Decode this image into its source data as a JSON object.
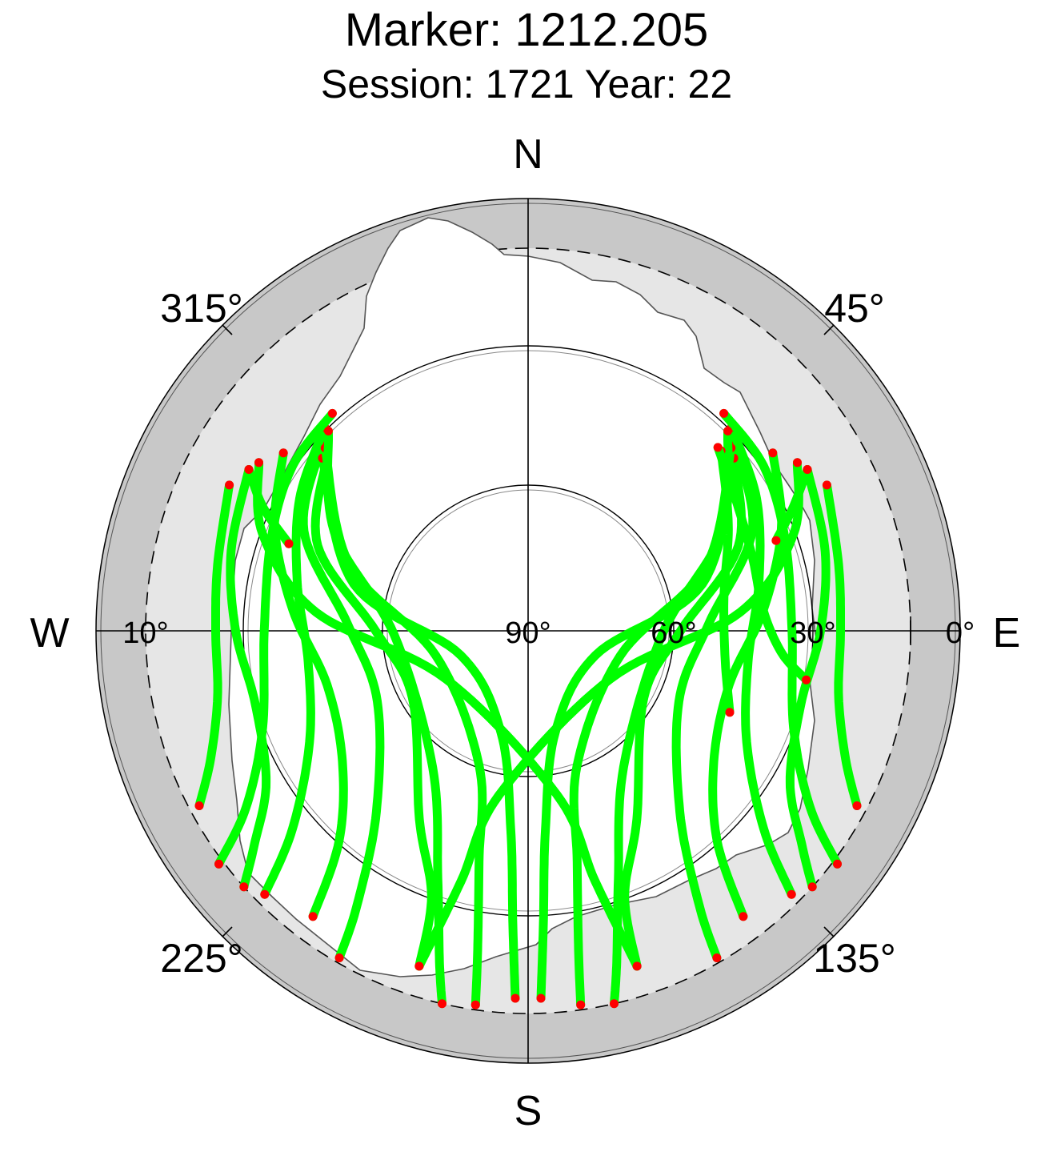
{
  "title": "Marker: 1212.205",
  "subtitle": "Session: 1721 Year: 22",
  "compass": {
    "north": "N",
    "east": "E",
    "south": "S",
    "west": "W"
  },
  "azimuth_labels": [
    "45°",
    "135°",
    "225°",
    "315°"
  ],
  "elevation_labels": [
    "0°",
    "10°",
    "30°",
    "60°",
    "90°"
  ],
  "colors": {
    "track": "#00ff00",
    "track_end": "#ff0000",
    "mask_outer": "#c8c8c8",
    "mask_inner": "#e6e6e6",
    "visible": "#ffffff"
  },
  "chart_data": {
    "type": "scatter",
    "projection": "polar-skyplot",
    "title": "Marker: 1212.205",
    "subtitle": "Session: 1721 Year: 22",
    "elevation_range_deg": [
      0,
      90
    ],
    "elevation_circles_deg": [
      0,
      10,
      30,
      60
    ],
    "azimuth_ticks_deg": [
      0,
      45,
      90,
      135,
      180,
      225,
      270,
      315
    ],
    "grid": true,
    "series": [
      {
        "role": "satellite tracks",
        "marker": "dot",
        "tracks": [
          [
            [
              310,
              34
            ],
            [
              292,
              42
            ],
            [
              270,
              58
            ],
            [
              240,
              62
            ],
            [
              210,
              44
            ],
            [
              200,
              30
            ],
            [
              198,
              16
            ]
          ],
          [
            [
              312,
              31
            ],
            [
              294,
              38
            ],
            [
              272,
              52
            ],
            [
              245,
              55
            ],
            [
              220,
              40
            ],
            [
              212,
              22
            ],
            [
              210,
              11
            ]
          ],
          [
            [
              315,
              29
            ],
            [
              300,
              34
            ],
            [
              282,
              40
            ],
            [
              262,
              43
            ],
            [
              243,
              38
            ],
            [
              230,
              25
            ],
            [
              225,
              12
            ]
          ],
          [
            [
              318,
              28
            ],
            [
              305,
              29
            ],
            [
              290,
              32
            ],
            [
              270,
              34
            ],
            [
              250,
              30
            ],
            [
              238,
              20
            ],
            [
              233,
              9
            ]
          ],
          [
            [
              310,
              33
            ],
            [
              285,
              52
            ],
            [
              250,
              75
            ],
            [
              195,
              68
            ],
            [
              185,
              48
            ],
            [
              183,
              28
            ],
            [
              182,
              13
            ]
          ],
          [
            [
              312,
              32
            ],
            [
              290,
              50
            ],
            [
              255,
              70
            ],
            [
              200,
              60
            ],
            [
              192,
              40
            ],
            [
              189,
              22
            ],
            [
              188,
              11
            ]
          ],
          [
            [
              315,
              30
            ],
            [
              297,
              44
            ],
            [
              268,
              62
            ],
            [
              215,
              55
            ],
            [
              200,
              34
            ],
            [
              195,
              18
            ],
            [
              193,
              10
            ]
          ],
          [
            [
              306,
              26
            ],
            [
              292,
              32
            ],
            [
              275,
              40
            ],
            [
              255,
              46
            ],
            [
              235,
              42
            ],
            [
              222,
              30
            ],
            [
              217,
              15
            ]
          ],
          [
            [
              300,
              22
            ],
            [
              285,
              25
            ],
            [
              270,
              28
            ],
            [
              255,
              30
            ],
            [
              240,
              26
            ],
            [
              232,
              17
            ],
            [
              228,
              10
            ]
          ],
          [
            [
              296,
              20
            ],
            [
              282,
              23
            ],
            [
              270,
              24
            ],
            [
              258,
              23
            ],
            [
              248,
              18
            ],
            [
              242,
              12
            ]
          ],
          [
            [
              302,
              23
            ],
            [
              290,
              30
            ],
            [
              275,
              45
            ],
            [
              240,
              70
            ],
            [
              170,
              55
            ],
            [
              165,
              35
            ],
            [
              162,
              16
            ]
          ],
          [
            [
              50,
              33
            ],
            [
              68,
              42
            ],
            [
              90,
              58
            ],
            [
              120,
              62
            ],
            [
              150,
              44
            ],
            [
              160,
              30
            ],
            [
              162,
              16
            ]
          ],
          [
            [
              48,
              31
            ],
            [
              66,
              38
            ],
            [
              88,
              52
            ],
            [
              115,
              55
            ],
            [
              140,
              40
            ],
            [
              148,
              22
            ],
            [
              150,
              11
            ]
          ],
          [
            [
              45,
              29
            ],
            [
              60,
              34
            ],
            [
              78,
              40
            ],
            [
              98,
              43
            ],
            [
              117,
              38
            ],
            [
              130,
              25
            ],
            [
              135,
              12
            ]
          ],
          [
            [
              42,
              28
            ],
            [
              55,
              29
            ],
            [
              70,
              32
            ],
            [
              90,
              34
            ],
            [
              110,
              30
            ],
            [
              122,
              20
            ],
            [
              127,
              9
            ]
          ],
          [
            [
              50,
              33
            ],
            [
              75,
              52
            ],
            [
              110,
              75
            ],
            [
              165,
              68
            ],
            [
              175,
              48
            ],
            [
              177,
              28
            ],
            [
              178,
              13
            ]
          ],
          [
            [
              48,
              32
            ],
            [
              70,
              50
            ],
            [
              105,
              70
            ],
            [
              160,
              60
            ],
            [
              168,
              40
            ],
            [
              171,
              22
            ],
            [
              172,
              11
            ]
          ],
          [
            [
              45,
              30
            ],
            [
              63,
              44
            ],
            [
              92,
              62
            ],
            [
              145,
              55
            ],
            [
              160,
              34
            ],
            [
              165,
              18
            ],
            [
              167,
              10
            ]
          ],
          [
            [
              54,
              26
            ],
            [
              68,
              32
            ],
            [
              85,
              40
            ],
            [
              105,
              46
            ],
            [
              125,
              42
            ],
            [
              138,
              30
            ],
            [
              143,
              15
            ]
          ],
          [
            [
              60,
              22
            ],
            [
              75,
              25
            ],
            [
              90,
              28
            ],
            [
              105,
              30
            ],
            [
              120,
              26
            ],
            [
              128,
              17
            ],
            [
              132,
              10
            ]
          ],
          [
            [
              64,
              20
            ],
            [
              78,
              23
            ],
            [
              90,
              24
            ],
            [
              102,
              23
            ],
            [
              112,
              18
            ],
            [
              118,
              12
            ]
          ],
          [
            [
              58,
              23
            ],
            [
              70,
              30
            ],
            [
              85,
              45
            ],
            [
              120,
              70
            ],
            [
              190,
              55
            ],
            [
              195,
              35
            ],
            [
              198,
              16
            ]
          ],
          [
            [
              47,
              34
            ],
            [
              62,
              42
            ],
            [
              80,
              48
            ],
            [
              98,
              48
            ],
            [
              112,
              44
            ]
          ],
          [
            [
              46,
              34
            ],
            [
              58,
              38
            ],
            [
              72,
              40
            ],
            [
              85,
              40
            ],
            [
              95,
              36
            ],
            [
              100,
              30
            ]
          ],
          [
            [
              300,
              22
            ],
            [
              295,
              28
            ],
            [
              290,
              36
            ]
          ],
          [
            [
              60,
              22
            ],
            [
              65,
              28
            ],
            [
              70,
              34
            ]
          ]
        ]
      }
    ]
  }
}
